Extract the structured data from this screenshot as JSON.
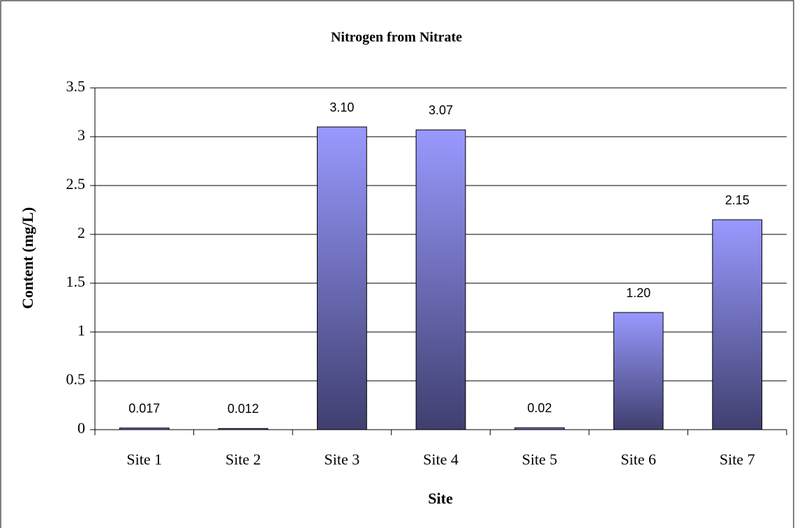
{
  "chart_data": {
    "type": "bar",
    "title": "Nitrogen from Nitrate",
    "xlabel": "Site",
    "ylabel": "Content (mg/L)",
    "categories": [
      "Site 1",
      "Site 2",
      "Site 3",
      "Site 4",
      "Site 5",
      "Site 6",
      "Site 7"
    ],
    "values": [
      0.017,
      0.012,
      3.1,
      3.07,
      0.02,
      1.2,
      2.15
    ],
    "value_labels": [
      "0.017",
      "0.012",
      "3.10",
      "3.07",
      "0.02",
      "1.20",
      "2.15"
    ],
    "color": "#9999ff",
    "ylim": [
      0,
      3.5
    ],
    "yticks": [
      0,
      0.5,
      1,
      1.5,
      2,
      2.5,
      3,
      3.5
    ],
    "grid": true
  }
}
